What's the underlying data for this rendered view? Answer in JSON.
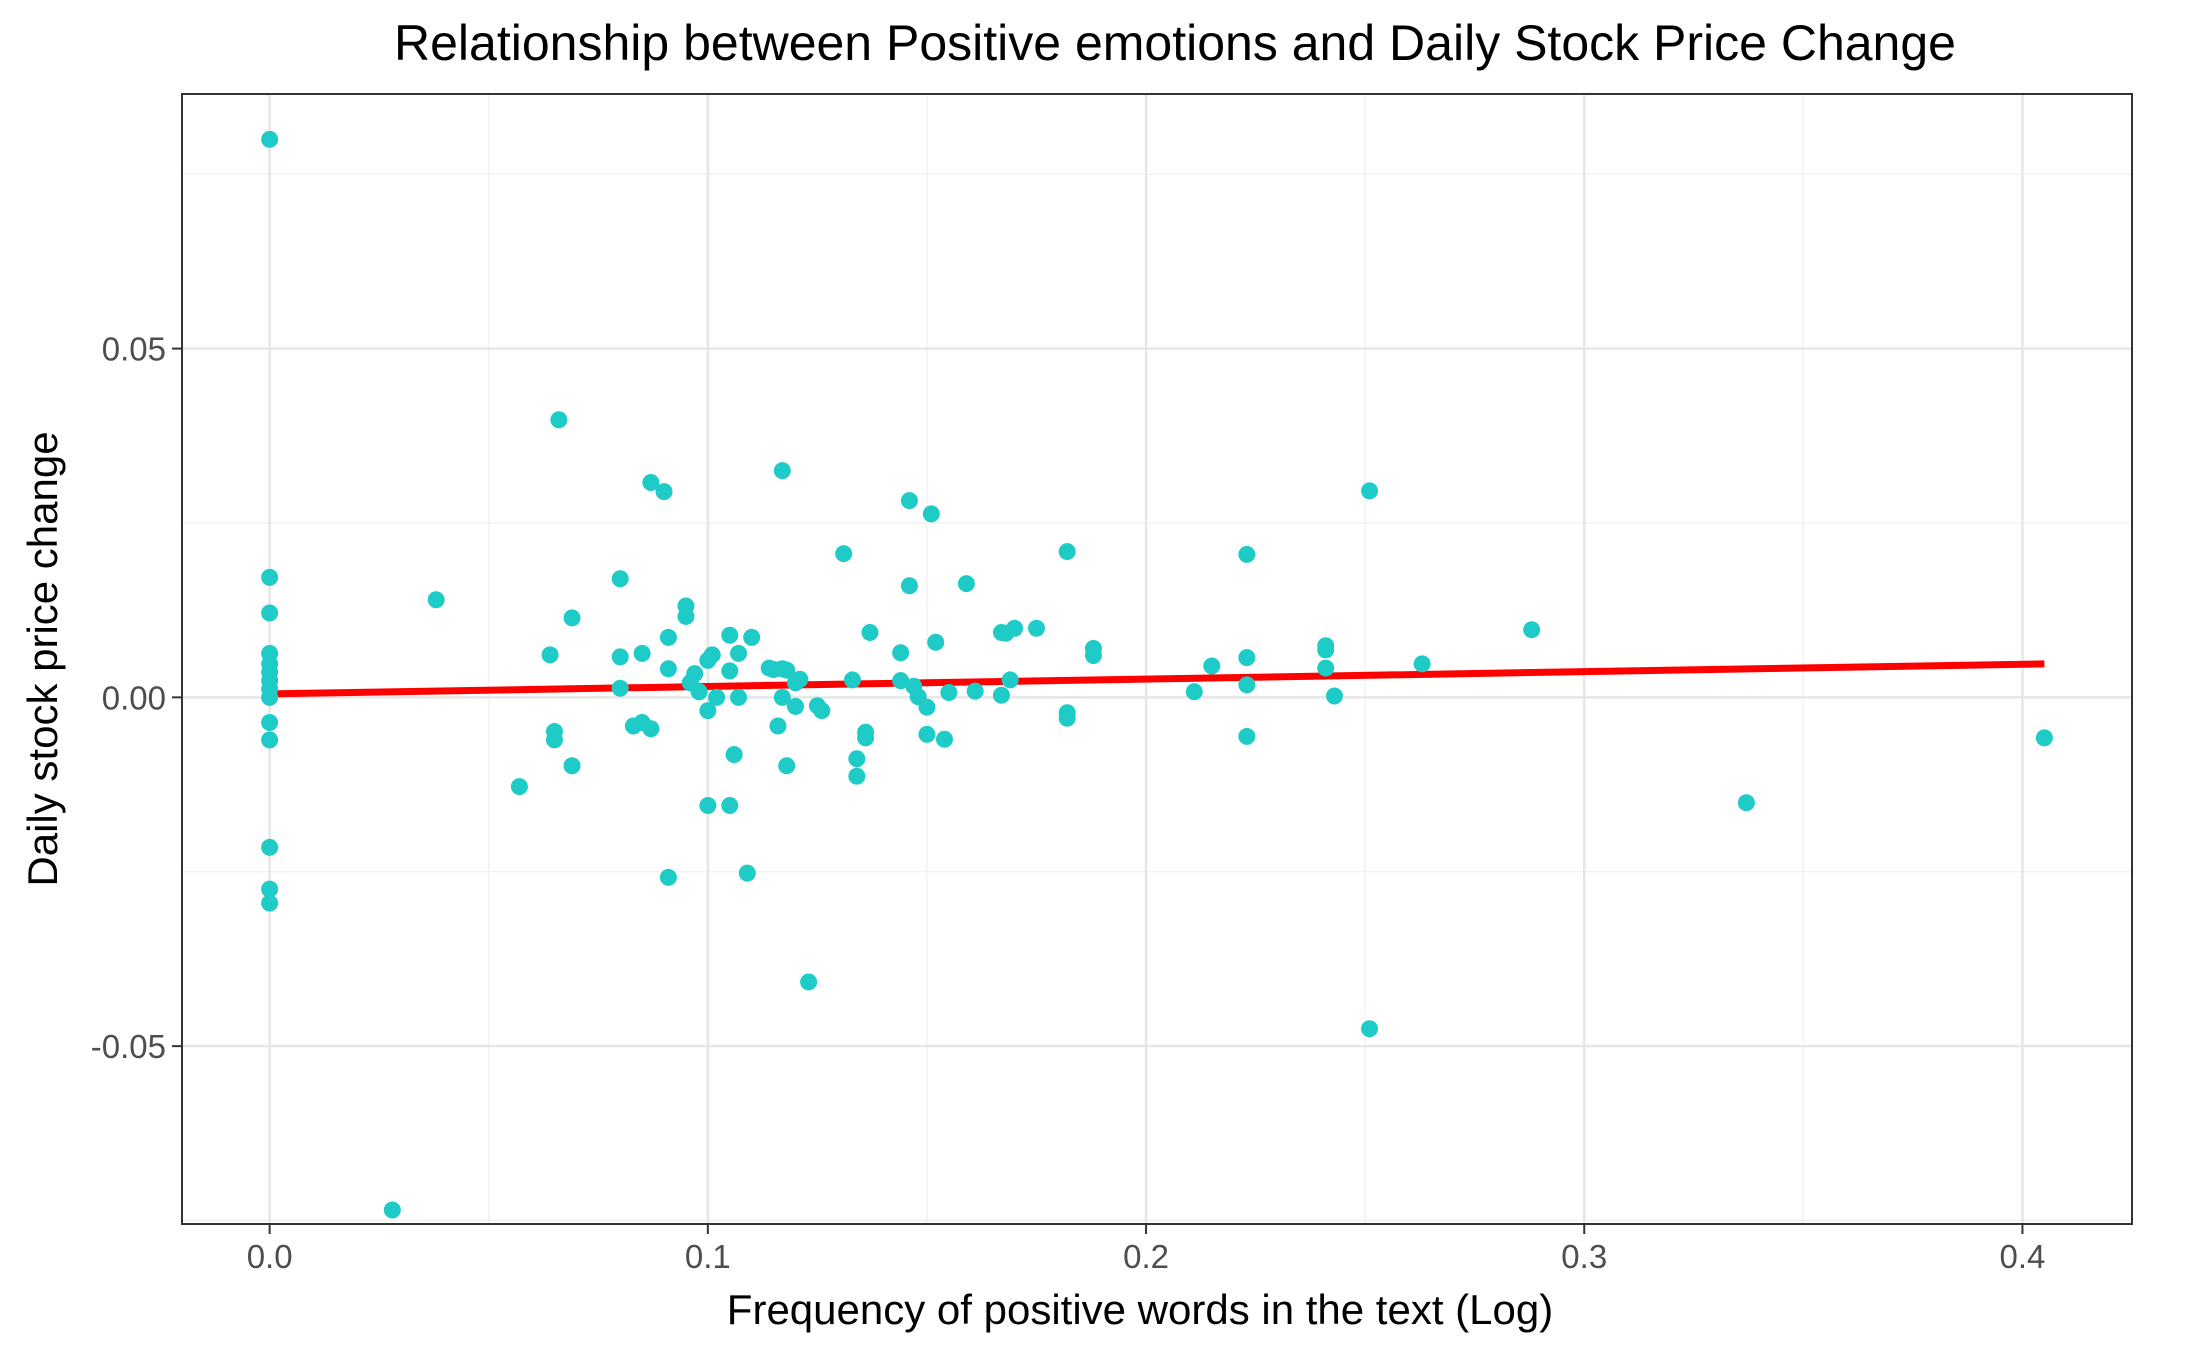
{
  "chart_data": {
    "type": "scatter",
    "title": "Relationship between Positive emotions and Daily Stock Price Change",
    "xlabel": "Frequency of positive words in the text (Log)",
    "ylabel": "Daily stock price change",
    "xlim": [
      -0.02,
      0.425
    ],
    "ylim": [
      -0.0755,
      0.0865
    ],
    "xticks": [
      0.0,
      0.1,
      0.2,
      0.3,
      0.4
    ],
    "xtick_labels": [
      "0.0",
      "0.1",
      "0.2",
      "0.3",
      "0.4"
    ],
    "yticks": [
      -0.05,
      0.0,
      0.05
    ],
    "ytick_labels": [
      "-0.05",
      "0.00",
      "0.05"
    ],
    "grid": true,
    "legend": "none",
    "colors": {
      "points": "#1ecbc7",
      "fit_line": "#ff0000",
      "grid_major": "#e6e6e6",
      "grid_minor": "#f2f2f2",
      "panel_border": "#333333"
    },
    "fit_line": {
      "x": [
        0.0,
        0.405
      ],
      "y": [
        0.0005,
        0.0048
      ]
    },
    "points": [
      [
        0.0,
        0.08
      ],
      [
        0.0,
        0.0172
      ],
      [
        0.0,
        0.0121
      ],
      [
        0.0,
        0.0063
      ],
      [
        0.0,
        0.0048
      ],
      [
        0.0,
        0.0036
      ],
      [
        0.0,
        0.0024
      ],
      [
        0.0,
        0.0012
      ],
      [
        0.0,
        0.0
      ],
      [
        0.0,
        -0.0036
      ],
      [
        0.0,
        -0.0061
      ],
      [
        0.0,
        -0.0215
      ],
      [
        0.0,
        -0.0275
      ],
      [
        0.0,
        -0.0295
      ],
      [
        0.028,
        -0.0735
      ],
      [
        0.038,
        0.014
      ],
      [
        0.057,
        -0.0128
      ],
      [
        0.064,
        0.0061
      ],
      [
        0.065,
        -0.0049
      ],
      [
        0.065,
        -0.0061
      ],
      [
        0.066,
        0.0398
      ],
      [
        0.069,
        0.0114
      ],
      [
        0.069,
        -0.0098
      ],
      [
        0.08,
        0.017
      ],
      [
        0.08,
        0.0058
      ],
      [
        0.08,
        0.0013
      ],
      [
        0.083,
        -0.0041
      ],
      [
        0.085,
        0.0063
      ],
      [
        0.085,
        -0.0036
      ],
      [
        0.087,
        -0.0045
      ],
      [
        0.087,
        0.0308
      ],
      [
        0.09,
        0.0295
      ],
      [
        0.091,
        0.0086
      ],
      [
        0.091,
        0.0041
      ],
      [
        0.091,
        -0.0258
      ],
      [
        0.095,
        0.0131
      ],
      [
        0.095,
        0.0116
      ],
      [
        0.096,
        0.0021
      ],
      [
        0.097,
        0.0034
      ],
      [
        0.098,
        0.0008
      ],
      [
        0.1,
        -0.0019
      ],
      [
        0.1,
        0.0053
      ],
      [
        0.1,
        -0.0155
      ],
      [
        0.101,
        0.0061
      ],
      [
        0.102,
        0.0
      ],
      [
        0.105,
        0.0089
      ],
      [
        0.105,
        0.0038
      ],
      [
        0.105,
        -0.0155
      ],
      [
        0.106,
        -0.0082
      ],
      [
        0.107,
        0.0063
      ],
      [
        0.107,
        0.0
      ],
      [
        0.109,
        -0.0252
      ],
      [
        0.11,
        0.0086
      ],
      [
        0.114,
        0.0042
      ],
      [
        0.115,
        0.004
      ],
      [
        0.116,
        -0.0041
      ],
      [
        0.117,
        0.0325
      ],
      [
        0.117,
        0.0041
      ],
      [
        0.117,
        0.0
      ],
      [
        0.118,
        -0.0098
      ],
      [
        0.118,
        0.0039
      ],
      [
        0.12,
        0.0021
      ],
      [
        0.12,
        -0.0013
      ],
      [
        0.121,
        0.0026
      ],
      [
        0.123,
        -0.0408
      ],
      [
        0.125,
        -0.0012
      ],
      [
        0.126,
        -0.0019
      ],
      [
        0.131,
        0.0206
      ],
      [
        0.133,
        0.0025
      ],
      [
        0.134,
        -0.0088
      ],
      [
        0.134,
        -0.0113
      ],
      [
        0.136,
        -0.005
      ],
      [
        0.136,
        -0.0058
      ],
      [
        0.137,
        0.0093
      ],
      [
        0.144,
        0.0064
      ],
      [
        0.144,
        0.0024
      ],
      [
        0.146,
        0.016
      ],
      [
        0.146,
        0.0282
      ],
      [
        0.147,
        0.0016
      ],
      [
        0.148,
        0.0001
      ],
      [
        0.15,
        -0.0014
      ],
      [
        0.15,
        -0.0053
      ],
      [
        0.151,
        0.0263
      ],
      [
        0.152,
        0.0079
      ],
      [
        0.154,
        -0.006
      ],
      [
        0.155,
        0.0007
      ],
      [
        0.159,
        0.0163
      ],
      [
        0.161,
        0.0009
      ],
      [
        0.167,
        0.0093
      ],
      [
        0.167,
        0.0003
      ],
      [
        0.168,
        0.0092
      ],
      [
        0.169,
        0.0025
      ],
      [
        0.17,
        0.0099
      ],
      [
        0.175,
        0.0099
      ],
      [
        0.182,
        0.0209
      ],
      [
        0.182,
        -0.0022
      ],
      [
        0.182,
        -0.003
      ],
      [
        0.188,
        0.007
      ],
      [
        0.188,
        0.006
      ],
      [
        0.211,
        0.0008
      ],
      [
        0.215,
        0.0045
      ],
      [
        0.223,
        0.0205
      ],
      [
        0.223,
        0.0057
      ],
      [
        0.223,
        0.0018
      ],
      [
        0.223,
        -0.0056
      ],
      [
        0.241,
        0.0074
      ],
      [
        0.241,
        0.0068
      ],
      [
        0.241,
        0.0042
      ],
      [
        0.243,
        0.0002
      ],
      [
        0.251,
        0.0296
      ],
      [
        0.251,
        -0.0475
      ],
      [
        0.263,
        0.0048
      ],
      [
        0.288,
        0.0097
      ],
      [
        0.337,
        -0.0151
      ],
      [
        0.405,
        -0.0058
      ]
    ]
  }
}
